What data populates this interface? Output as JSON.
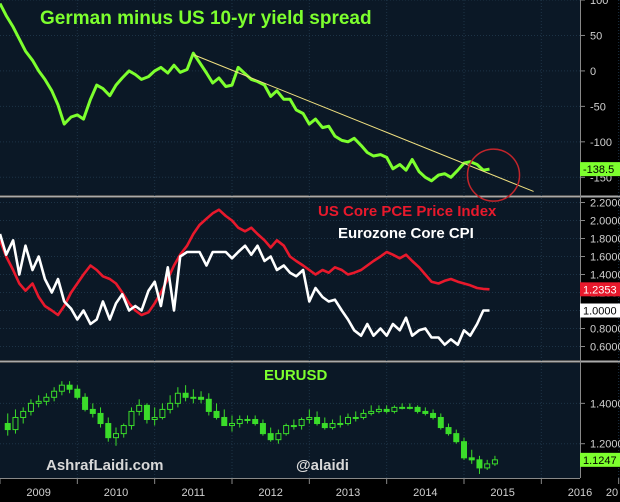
{
  "chart_data": [
    {
      "type": "line",
      "title": "German minus US 10-yr yield spread",
      "x_range": [
        2009.0,
        2016.5
      ],
      "ylim": [
        -175,
        100
      ],
      "y_ticks": [
        "100",
        "50",
        "0",
        "-50",
        "-100",
        "-150"
      ],
      "last_value_label": "-138.5",
      "series": [
        {
          "color": "#7dff2e",
          "x": [
            2009.0,
            2009.08,
            2009.17,
            2009.25,
            2009.33,
            2009.42,
            2009.5,
            2009.58,
            2009.67,
            2009.75,
            2009.83,
            2009.92,
            2010.0,
            2010.08,
            2010.17,
            2010.25,
            2010.33,
            2010.42,
            2010.5,
            2010.58,
            2010.67,
            2010.75,
            2010.83,
            2010.92,
            2011.0,
            2011.08,
            2011.17,
            2011.25,
            2011.33,
            2011.42,
            2011.5,
            2011.58,
            2011.67,
            2011.75,
            2011.83,
            2011.92,
            2012.0,
            2012.08,
            2012.17,
            2012.25,
            2012.33,
            2012.42,
            2012.5,
            2012.58,
            2012.67,
            2012.75,
            2012.83,
            2012.92,
            2013.0,
            2013.08,
            2013.17,
            2013.25,
            2013.33,
            2013.42,
            2013.5,
            2013.58,
            2013.67,
            2013.75,
            2013.83,
            2013.92,
            2014.0,
            2014.08,
            2014.17,
            2014.25,
            2014.33,
            2014.42,
            2014.5,
            2014.58,
            2014.67,
            2014.75,
            2014.83,
            2014.92,
            2015.0,
            2015.08,
            2015.17,
            2015.25,
            2015.33
          ],
          "values": [
            95,
            78,
            62,
            45,
            28,
            15,
            0,
            -12,
            -28,
            -48,
            -75,
            -65,
            -62,
            -68,
            -40,
            -20,
            -25,
            -35,
            -20,
            -10,
            0,
            -5,
            -12,
            -8,
            0,
            5,
            -3,
            8,
            -2,
            2,
            25,
            12,
            -3,
            -17,
            -10,
            -22,
            -20,
            5,
            -4,
            -12,
            -15,
            -20,
            -36,
            -28,
            -40,
            -40,
            -55,
            -60,
            -75,
            -68,
            -80,
            -78,
            -92,
            -98,
            -100,
            -95,
            -105,
            -115,
            -120,
            -118,
            -122,
            -138,
            -132,
            -140,
            -125,
            -142,
            -150,
            -155,
            -147,
            -145,
            -150,
            -140,
            -130,
            -128,
            -132,
            -140,
            -138.5
          ]
        }
      ],
      "trendline": {
        "x": [
          2011.5,
          2015.9
        ],
        "y": [
          23,
          -170
        ],
        "color": "#f0e080"
      },
      "annotation": "circle around latest value"
    },
    {
      "type": "line",
      "x_range": [
        2009.0,
        2016.5
      ],
      "ylim": [
        0.45,
        2.25
      ],
      "y_ticks": [
        "2.2000",
        "2.0000",
        "1.8000",
        "1.6000",
        "1.4000",
        "1.2000",
        "1.0000",
        "0.8000",
        "0.6000"
      ],
      "series": [
        {
          "name": "US Core PCE Price Index",
          "color": "#e8192c",
          "last_value_label": "1.2353",
          "x": [
            2009.0,
            2009.08,
            2009.17,
            2009.25,
            2009.33,
            2009.42,
            2009.5,
            2009.58,
            2009.67,
            2009.75,
            2009.83,
            2009.92,
            2010.0,
            2010.08,
            2010.17,
            2010.25,
            2010.33,
            2010.42,
            2010.5,
            2010.58,
            2010.67,
            2010.75,
            2010.83,
            2010.92,
            2011.0,
            2011.08,
            2011.17,
            2011.25,
            2011.33,
            2011.42,
            2011.5,
            2011.58,
            2011.67,
            2011.75,
            2011.83,
            2011.92,
            2012.0,
            2012.08,
            2012.17,
            2012.25,
            2012.33,
            2012.42,
            2012.5,
            2012.58,
            2012.67,
            2012.75,
            2012.83,
            2012.92,
            2013.0,
            2013.08,
            2013.17,
            2013.25,
            2013.33,
            2013.42,
            2013.5,
            2013.58,
            2013.67,
            2013.75,
            2013.83,
            2013.92,
            2014.0,
            2014.08,
            2014.17,
            2014.25,
            2014.33,
            2014.42,
            2014.5,
            2014.58,
            2014.67,
            2014.75,
            2014.83,
            2014.92,
            2015.0,
            2015.08,
            2015.17,
            2015.25,
            2015.33
          ],
          "values": [
            1.78,
            1.6,
            1.45,
            1.3,
            1.22,
            1.3,
            1.15,
            1.05,
            1.0,
            0.95,
            1.05,
            1.2,
            1.3,
            1.4,
            1.5,
            1.45,
            1.38,
            1.35,
            1.3,
            1.2,
            1.08,
            1.0,
            0.95,
            0.98,
            1.08,
            1.2,
            1.35,
            1.5,
            1.62,
            1.72,
            1.85,
            1.95,
            2.02,
            2.08,
            2.12,
            2.05,
            2.0,
            1.92,
            1.88,
            1.92,
            1.85,
            1.78,
            1.7,
            1.78,
            1.72,
            1.6,
            1.55,
            1.5,
            1.45,
            1.4,
            1.45,
            1.42,
            1.48,
            1.45,
            1.4,
            1.42,
            1.45,
            1.5,
            1.55,
            1.6,
            1.65,
            1.62,
            1.58,
            1.62,
            1.55,
            1.48,
            1.4,
            1.32,
            1.3,
            1.33,
            1.35,
            1.32,
            1.3,
            1.28,
            1.25,
            1.24,
            1.2353
          ]
        },
        {
          "name": "Eurozone Core CPI",
          "color": "#ffffff",
          "last_value_label": "1.0000",
          "x": [
            2009.0,
            2009.08,
            2009.17,
            2009.25,
            2009.33,
            2009.42,
            2009.5,
            2009.58,
            2009.67,
            2009.75,
            2009.83,
            2009.92,
            2010.0,
            2010.08,
            2010.17,
            2010.25,
            2010.33,
            2010.42,
            2010.5,
            2010.58,
            2010.67,
            2010.75,
            2010.83,
            2010.92,
            2011.0,
            2011.08,
            2011.17,
            2011.25,
            2011.33,
            2011.42,
            2011.5,
            2011.58,
            2011.67,
            2011.75,
            2011.83,
            2011.92,
            2012.0,
            2012.08,
            2012.17,
            2012.25,
            2012.33,
            2012.42,
            2012.5,
            2012.58,
            2012.67,
            2012.75,
            2012.83,
            2012.92,
            2013.0,
            2013.08,
            2013.17,
            2013.25,
            2013.33,
            2013.42,
            2013.5,
            2013.58,
            2013.67,
            2013.75,
            2013.83,
            2013.92,
            2014.0,
            2014.08,
            2014.17,
            2014.25,
            2014.33,
            2014.42,
            2014.5,
            2014.58,
            2014.67,
            2014.75,
            2014.83,
            2014.92,
            2015.0,
            2015.08,
            2015.17,
            2015.25,
            2015.33
          ],
          "values": [
            1.85,
            1.62,
            1.78,
            1.4,
            1.72,
            1.45,
            1.6,
            1.35,
            1.2,
            1.35,
            1.1,
            1.02,
            0.9,
            1.0,
            0.85,
            0.9,
            1.1,
            0.9,
            1.08,
            1.18,
            1.0,
            1.05,
            1.0,
            1.22,
            1.32,
            1.05,
            1.48,
            1.0,
            1.6,
            1.65,
            1.65,
            1.65,
            1.5,
            1.65,
            1.65,
            1.65,
            1.58,
            1.65,
            1.72,
            1.62,
            1.72,
            1.55,
            1.6,
            1.45,
            1.5,
            1.42,
            1.38,
            1.45,
            1.1,
            1.25,
            1.15,
            1.1,
            1.12,
            1.0,
            0.9,
            0.78,
            0.72,
            0.85,
            0.72,
            0.8,
            0.72,
            0.85,
            0.78,
            0.92,
            0.72,
            0.78,
            0.8,
            0.7,
            0.7,
            0.62,
            0.68,
            0.62,
            0.78,
            0.72,
            0.85,
            1.0,
            1.0
          ]
        }
      ]
    },
    {
      "type": "candlestick",
      "title": "EURUSD",
      "x_range": [
        2009.0,
        2016.5
      ],
      "ylim": [
        1.03,
        1.6
      ],
      "y_ticks": [
        "1.4000",
        "1.2000"
      ],
      "last_value_label": "1.1247",
      "x_tick_labels": [
        "2009",
        "2010",
        "2011",
        "2012",
        "2013",
        "2014",
        "2015",
        "2016",
        "20"
      ],
      "candles": {
        "x": [
          2009.1,
          2009.2,
          2009.3,
          2009.4,
          2009.5,
          2009.6,
          2009.7,
          2009.8,
          2009.9,
          2010.0,
          2010.1,
          2010.2,
          2010.3,
          2010.4,
          2010.5,
          2010.6,
          2010.7,
          2010.8,
          2010.9,
          2011.0,
          2011.1,
          2011.2,
          2011.3,
          2011.4,
          2011.5,
          2011.6,
          2011.7,
          2011.8,
          2011.9,
          2012.0,
          2012.1,
          2012.2,
          2012.3,
          2012.4,
          2012.5,
          2012.6,
          2012.7,
          2012.8,
          2012.9,
          2013.0,
          2013.1,
          2013.2,
          2013.3,
          2013.4,
          2013.5,
          2013.6,
          2013.7,
          2013.8,
          2013.9,
          2014.0,
          2014.1,
          2014.2,
          2014.3,
          2014.4,
          2014.5,
          2014.6,
          2014.7,
          2014.8,
          2014.9,
          2015.0,
          2015.1,
          2015.2,
          2015.3,
          2015.4
        ],
        "open": [
          1.3,
          1.27,
          1.33,
          1.36,
          1.4,
          1.41,
          1.43,
          1.46,
          1.49,
          1.47,
          1.43,
          1.37,
          1.35,
          1.3,
          1.23,
          1.25,
          1.29,
          1.36,
          1.39,
          1.32,
          1.33,
          1.37,
          1.4,
          1.45,
          1.43,
          1.43,
          1.42,
          1.36,
          1.33,
          1.29,
          1.3,
          1.32,
          1.32,
          1.3,
          1.25,
          1.22,
          1.25,
          1.29,
          1.29,
          1.32,
          1.33,
          1.3,
          1.28,
          1.3,
          1.3,
          1.33,
          1.33,
          1.35,
          1.36,
          1.37,
          1.36,
          1.38,
          1.38,
          1.38,
          1.36,
          1.35,
          1.33,
          1.28,
          1.25,
          1.21,
          1.13,
          1.12,
          1.08,
          1.1
        ],
        "high": [
          1.35,
          1.37,
          1.38,
          1.42,
          1.44,
          1.45,
          1.48,
          1.51,
          1.51,
          1.49,
          1.45,
          1.4,
          1.38,
          1.33,
          1.28,
          1.3,
          1.38,
          1.42,
          1.4,
          1.38,
          1.4,
          1.44,
          1.48,
          1.49,
          1.47,
          1.46,
          1.45,
          1.4,
          1.37,
          1.34,
          1.34,
          1.34,
          1.34,
          1.32,
          1.28,
          1.27,
          1.3,
          1.32,
          1.33,
          1.37,
          1.36,
          1.33,
          1.32,
          1.34,
          1.35,
          1.36,
          1.37,
          1.39,
          1.39,
          1.39,
          1.39,
          1.4,
          1.4,
          1.39,
          1.38,
          1.37,
          1.35,
          1.3,
          1.27,
          1.23,
          1.17,
          1.14,
          1.12,
          1.14
        ],
        "low": [
          1.24,
          1.25,
          1.3,
          1.34,
          1.38,
          1.39,
          1.41,
          1.44,
          1.45,
          1.42,
          1.36,
          1.33,
          1.28,
          1.21,
          1.19,
          1.23,
          1.27,
          1.34,
          1.3,
          1.29,
          1.32,
          1.35,
          1.38,
          1.41,
          1.4,
          1.4,
          1.34,
          1.32,
          1.29,
          1.26,
          1.28,
          1.3,
          1.29,
          1.24,
          1.21,
          1.2,
          1.24,
          1.27,
          1.27,
          1.3,
          1.29,
          1.27,
          1.27,
          1.28,
          1.29,
          1.31,
          1.32,
          1.34,
          1.35,
          1.35,
          1.35,
          1.37,
          1.37,
          1.35,
          1.34,
          1.32,
          1.27,
          1.24,
          1.2,
          1.12,
          1.1,
          1.05,
          1.07,
          1.09
        ],
        "close": [
          1.27,
          1.33,
          1.36,
          1.4,
          1.41,
          1.43,
          1.46,
          1.49,
          1.47,
          1.43,
          1.37,
          1.35,
          1.3,
          1.23,
          1.25,
          1.29,
          1.36,
          1.39,
          1.32,
          1.33,
          1.37,
          1.4,
          1.45,
          1.43,
          1.43,
          1.42,
          1.36,
          1.33,
          1.29,
          1.3,
          1.32,
          1.32,
          1.3,
          1.25,
          1.22,
          1.25,
          1.29,
          1.29,
          1.32,
          1.33,
          1.3,
          1.28,
          1.3,
          1.3,
          1.33,
          1.33,
          1.35,
          1.36,
          1.37,
          1.36,
          1.38,
          1.38,
          1.38,
          1.36,
          1.35,
          1.33,
          1.28,
          1.25,
          1.21,
          1.13,
          1.12,
          1.08,
          1.1,
          1.12
        ]
      }
    }
  ],
  "panel2_legend": {
    "red_label": "US Core PCE Price Index",
    "white_label": "Eurozone Core CPI"
  },
  "watermarks": {
    "left": "AshrafLaidi.com",
    "right": "@alaidi"
  }
}
